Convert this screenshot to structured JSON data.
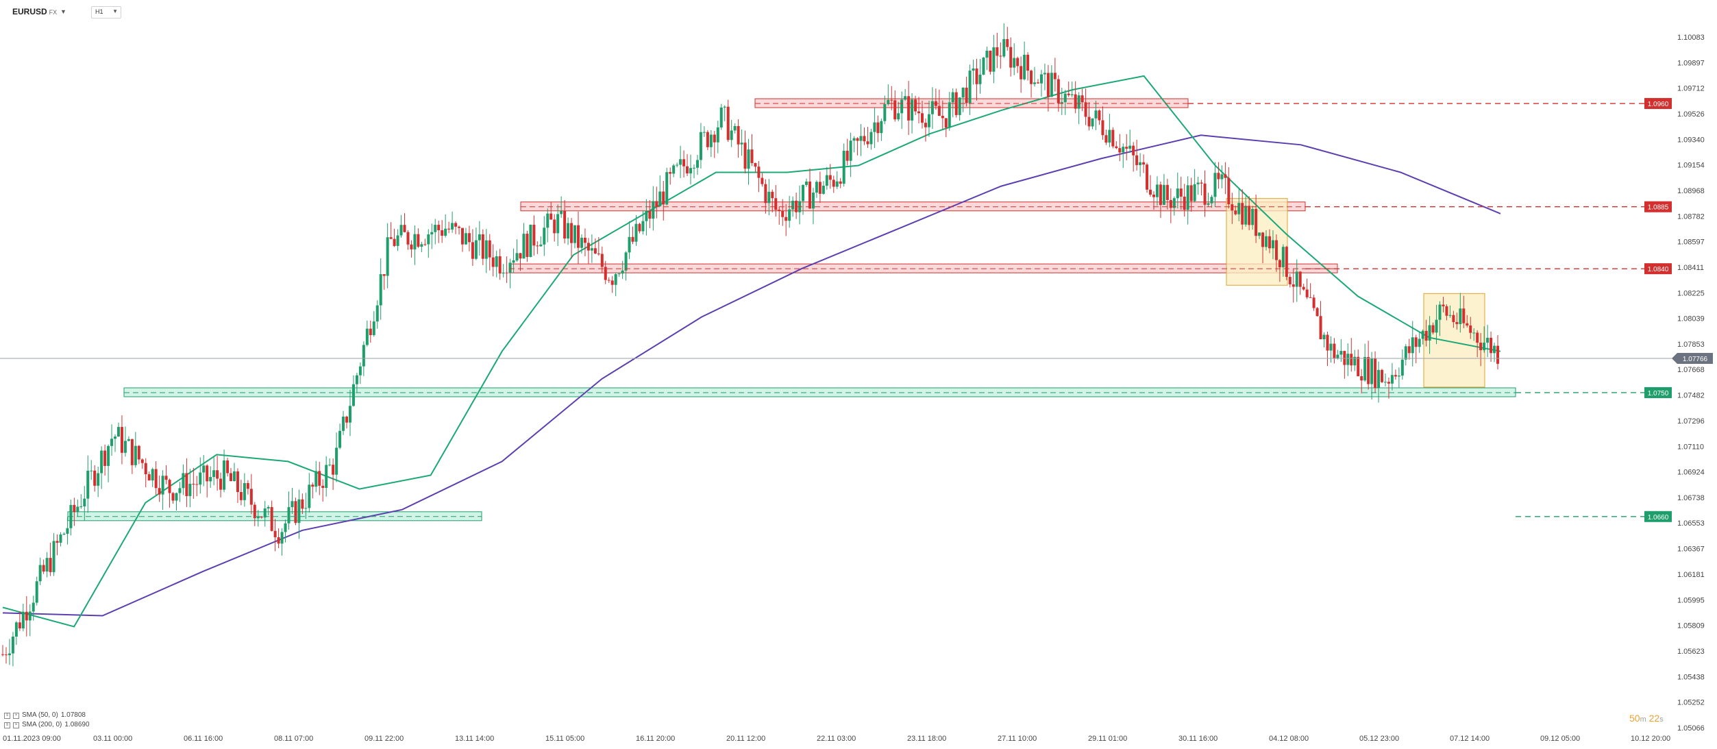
{
  "header": {
    "symbol": "EURUSD",
    "symbol_suffix": "FX",
    "timeframe": "H1",
    "caret": "▼"
  },
  "price_axis": {
    "ticks": [
      "1.10083",
      "1.09897",
      "1.09712",
      "1.09526",
      "1.09340",
      "1.09154",
      "1.08968",
      "1.08782",
      "1.08597",
      "1.08411",
      "1.08225",
      "1.08039",
      "1.07853",
      "1.07668",
      "1.07482",
      "1.07296",
      "1.07110",
      "1.06924",
      "1.06738",
      "1.06553",
      "1.06367",
      "1.06181",
      "1.05995",
      "1.05809",
      "1.05623",
      "1.05438",
      "1.05252",
      "1.05066"
    ],
    "current_price": "1.07766",
    "current_color": "#6b7380"
  },
  "time_axis": {
    "labels": [
      "01.11.2023  09:00",
      "03.11 00:00",
      "06.11 16:00",
      "08.11 07:00",
      "09.11 22:00",
      "13.11 14:00",
      "15.11 05:00",
      "16.11 20:00",
      "20.11 12:00",
      "22.11 03:00",
      "23.11 18:00",
      "27.11 10:00",
      "29.11 01:00",
      "30.11 16:00",
      "04.12 08:00",
      "05.12 23:00",
      "07.12 14:00",
      "09.12 05:00",
      "10.12 20:00"
    ]
  },
  "levels": [
    {
      "price": 1.096,
      "label": "1.0960",
      "kind": "resistance",
      "color": "#d32f2f"
    },
    {
      "price": 1.0885,
      "label": "1.0885",
      "kind": "resistance",
      "color": "#d32f2f"
    },
    {
      "price": 1.084,
      "label": "1.0840",
      "kind": "resistance",
      "color": "#d32f2f"
    },
    {
      "price": 1.075,
      "label": "1.0750",
      "kind": "support",
      "color": "#1e9e6a"
    },
    {
      "price": 1.066,
      "label": "1.0660",
      "kind": "support",
      "color": "#1e9e6a"
    }
  ],
  "indicators": [
    {
      "name": "SMA (50, 0)",
      "value": "1.07808",
      "color": "#1aa874"
    },
    {
      "name": "SMA (200, 0)",
      "value": "1.08690",
      "color": "#5b3fb0"
    }
  ],
  "timer": {
    "minutes": "50",
    "m_unit": "m",
    "seconds": "22",
    "s_unit": "s"
  },
  "colors": {
    "bull": "#1e9e6a",
    "bear": "#d32f2f",
    "zone_red": "#f7c9c9",
    "zone_green": "#bfeedd",
    "zone_yellow": "#fbeec0"
  },
  "chart_data": {
    "type": "candlestick",
    "series": [
      {
        "name": "EURUSD",
        "values": [
          1.056,
          1.064,
          1.072,
          1.068,
          1.069,
          1.065,
          1.07,
          1.086,
          1.087,
          1.0845,
          1.0875,
          1.0835,
          1.09,
          1.095,
          1.088,
          1.0905,
          1.096,
          1.095,
          1.1,
          1.097,
          1.094,
          1.089,
          1.09,
          1.0855,
          1.078,
          1.076,
          1.081,
          1.078
        ]
      },
      {
        "name": "SMA (50, 0)",
        "values": [
          1.0594,
          1.058,
          1.067,
          1.0705,
          1.07,
          1.068,
          1.069,
          1.078,
          1.085,
          1.088,
          1.091,
          1.091,
          1.0915,
          1.0938,
          1.0955,
          1.097,
          1.098,
          1.0915,
          1.0865,
          1.082,
          1.079,
          1.078
        ]
      },
      {
        "name": "SMA (200, 0)",
        "values": [
          1.059,
          1.0588,
          1.062,
          1.065,
          1.0665,
          1.07,
          1.076,
          1.0805,
          1.084,
          1.087,
          1.09,
          1.092,
          1.0937,
          1.093,
          1.091,
          1.088
        ]
      }
    ]
  }
}
